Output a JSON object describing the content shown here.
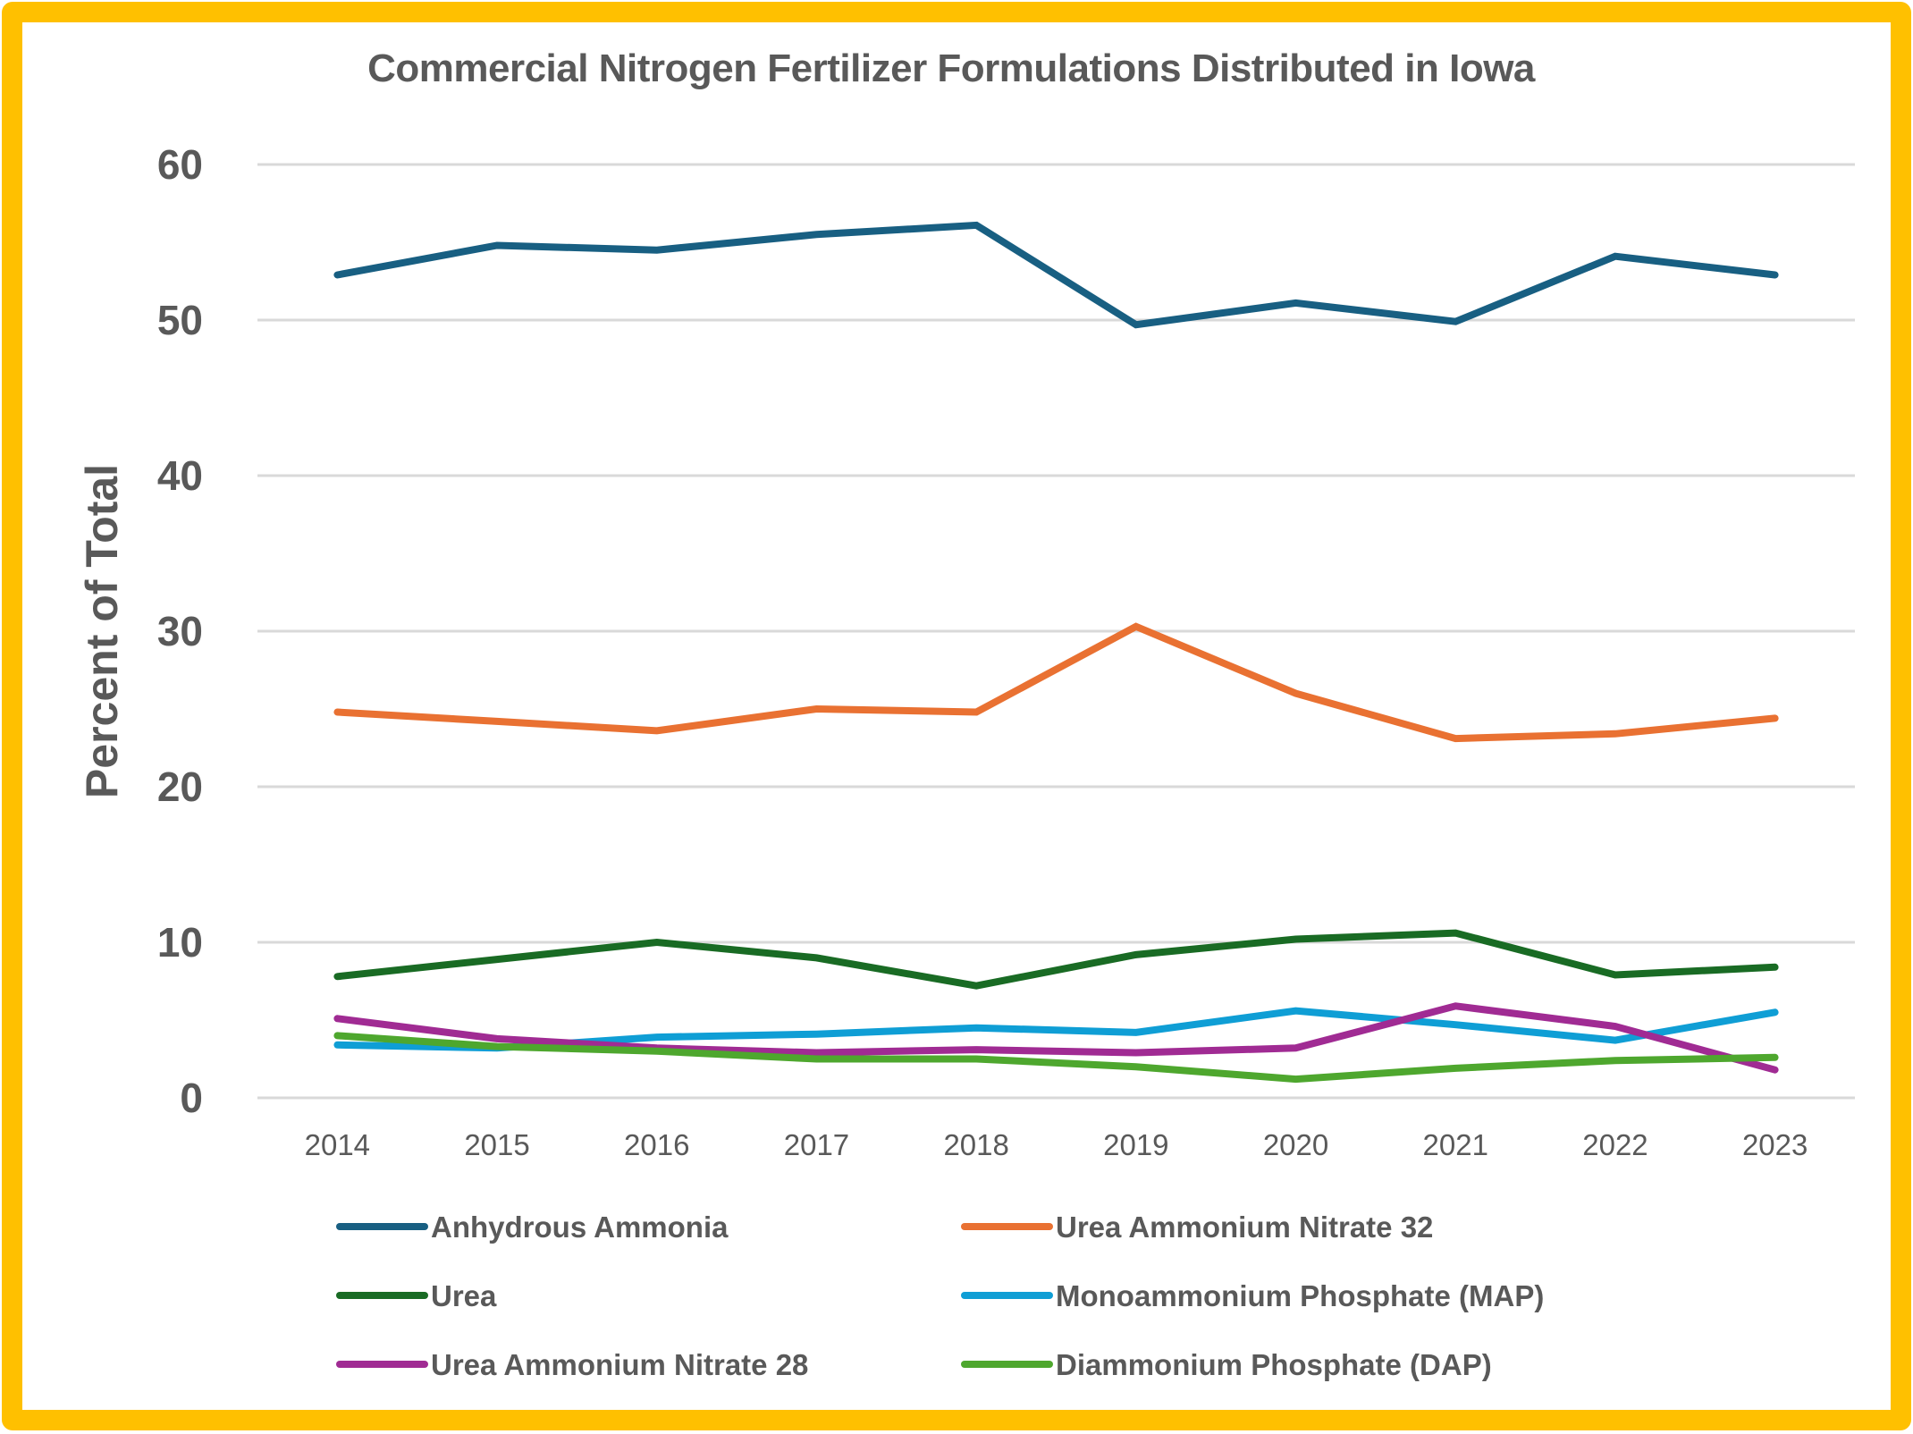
{
  "chart_data": {
    "type": "line",
    "title": "Commercial Nitrogen Fertilizer Formulations Distributed in Iowa",
    "xlabel": "",
    "ylabel": "Percent of Total",
    "ylim": [
      0,
      60
    ],
    "yticks": [
      "0",
      "10",
      "20",
      "30",
      "40",
      "50",
      "60"
    ],
    "ytick_values": [
      0,
      10,
      20,
      30,
      40,
      50,
      60
    ],
    "grid": true,
    "legend_placement": "bottom",
    "categories": [
      "2014",
      "2015",
      "2016",
      "2017",
      "2018",
      "2019",
      "2020",
      "2021",
      "2022",
      "2023"
    ],
    "series": [
      {
        "name": "Anhydrous Ammonia",
        "color": "#185F82",
        "values": [
          52.9,
          54.8,
          54.5,
          55.5,
          56.1,
          49.7,
          51.1,
          49.9,
          54.1,
          52.9
        ]
      },
      {
        "name": "Urea Ammonium Nitrate 32",
        "color": "#E97132",
        "values": [
          24.8,
          24.2,
          23.6,
          25.0,
          24.8,
          30.3,
          26.0,
          23.1,
          23.4,
          24.4
        ]
      },
      {
        "name": "Urea",
        "color": "#196B24",
        "values": [
          7.8,
          8.9,
          10.0,
          9.0,
          7.2,
          9.2,
          10.2,
          10.6,
          7.9,
          8.4
        ]
      },
      {
        "name": "Monoammonium Phosphate (MAP)",
        "color": "#0F9ED5",
        "values": [
          3.4,
          3.2,
          3.9,
          4.1,
          4.5,
          4.2,
          5.6,
          4.7,
          3.7,
          5.5
        ]
      },
      {
        "name": "Urea Ammonium Nitrate 28",
        "color": "#A02B93",
        "values": [
          5.1,
          3.8,
          3.2,
          2.9,
          3.1,
          2.9,
          3.2,
          5.9,
          4.6,
          1.8
        ]
      },
      {
        "name": "Diammonium Phosphate (DAP)",
        "color": "#4EA72E",
        "values": [
          4.0,
          3.3,
          3.0,
          2.5,
          2.5,
          2.0,
          1.2,
          1.9,
          2.4,
          2.6
        ]
      }
    ]
  },
  "colors": {
    "frame_border": "#FFC000",
    "text": "#595959",
    "gridline": "#D9D9D9"
  }
}
